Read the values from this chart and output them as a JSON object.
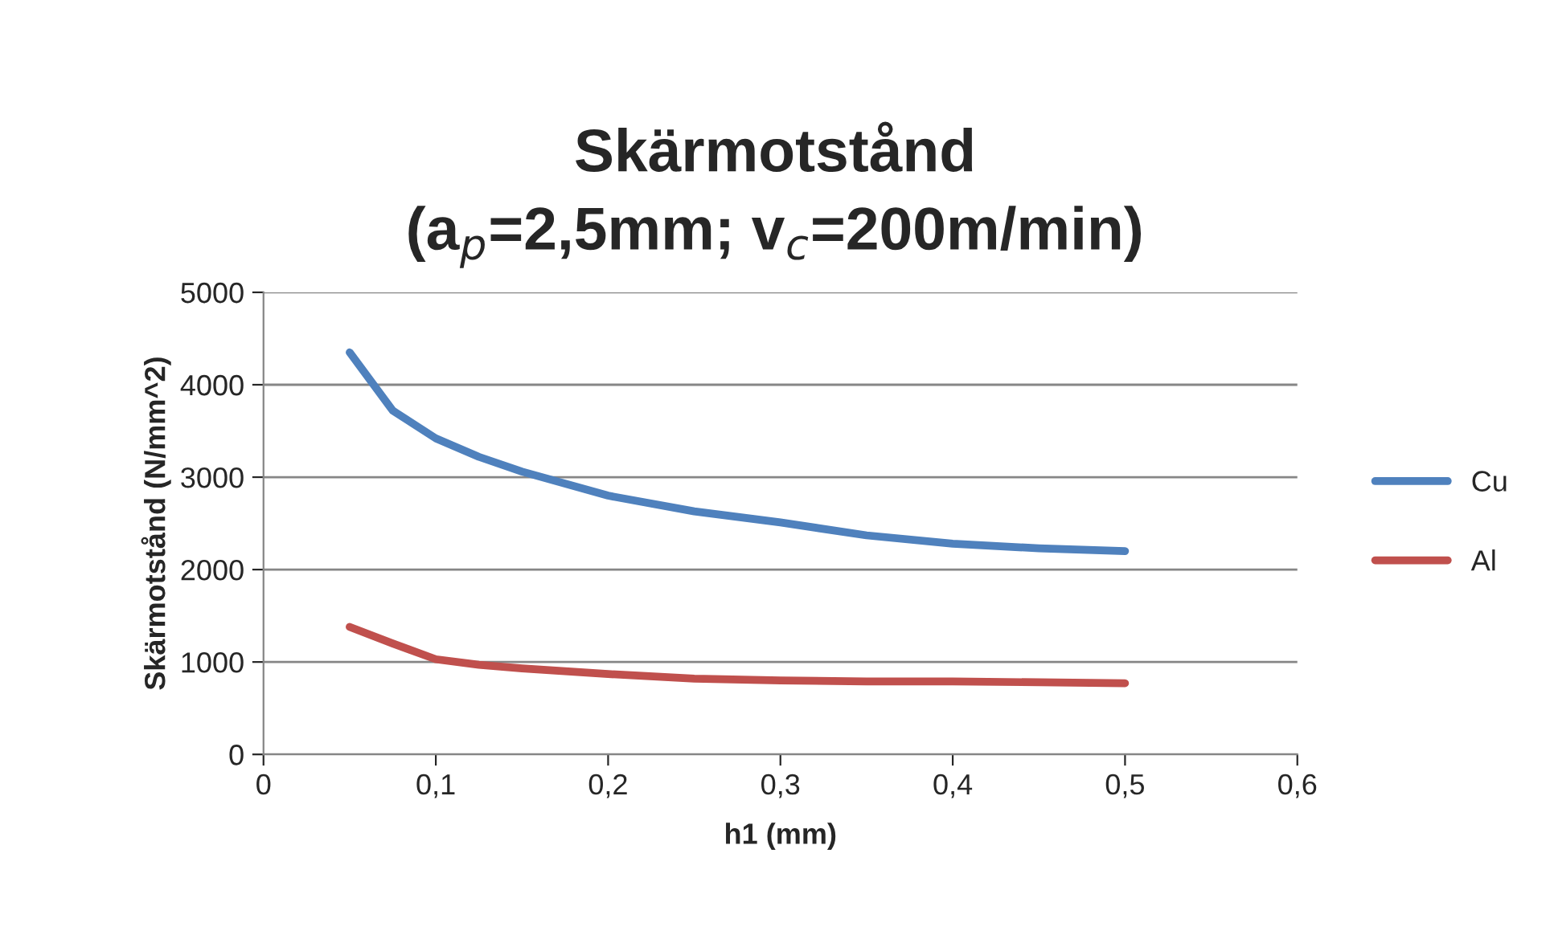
{
  "chart_data": {
    "type": "line",
    "title": "Skärmotstånd\n(a$_{p}$=2,5mm; v$_{c}$=200m/min)",
    "xlabel": "h1 (mm)",
    "ylabel": "Skärmotstånd (N/mm^2)",
    "x": [
      0.05,
      0.075,
      0.1,
      0.125,
      0.15,
      0.2,
      0.25,
      0.3,
      0.35,
      0.4,
      0.45,
      0.5
    ],
    "series": [
      {
        "name": "Cu",
        "color": "#4f81bd",
        "values": [
          4350,
          3720,
          3420,
          3220,
          3060,
          2800,
          2630,
          2510,
          2370,
          2280,
          2230,
          2200
        ]
      },
      {
        "name": "Al",
        "color": "#c0504d",
        "values": [
          1380,
          1200,
          1030,
          970,
          930,
          870,
          820,
          800,
          790,
          790,
          780,
          770
        ]
      }
    ],
    "xlim": [
      0,
      0.6
    ],
    "xticks": [
      0,
      {
        "value": 0.1,
        "label": "0,1"
      },
      {
        "value": 0.2,
        "label": "0,2"
      },
      {
        "value": 0.3,
        "label": "0,3"
      },
      {
        "value": 0.4,
        "label": "0,4"
      },
      {
        "value": 0.5,
        "label": "0,5"
      },
      {
        "value": 0.6,
        "label": "0,6"
      }
    ],
    "ylim": [
      0,
      5000
    ],
    "yticks": [
      0,
      1000,
      2000,
      3000,
      4000,
      5000
    ],
    "grid": "y",
    "legend": "right",
    "marker": "none",
    "line_style": "solid"
  }
}
